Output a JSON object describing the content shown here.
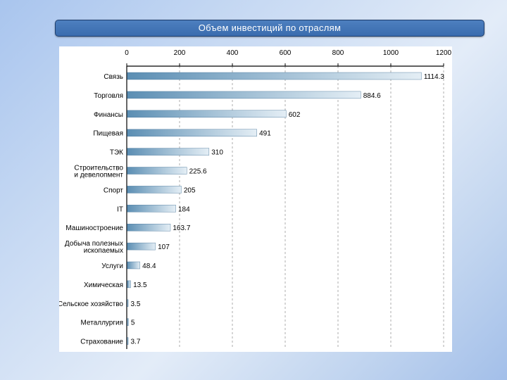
{
  "slide": {
    "title": "Объем инвестиций по отраслям"
  },
  "colors": {
    "bar_dark": "#5b8eb3",
    "bar_light": "#e4eef5",
    "axis": "#000000",
    "grid": "#9a9a9a",
    "title_bar": "#3f72b4"
  },
  "chart_data": {
    "type": "bar",
    "orientation": "horizontal",
    "title": "",
    "xlabel": "",
    "ylabel": "",
    "xlim": [
      0,
      1200
    ],
    "x_ticks": [
      "0",
      "200",
      "400",
      "600",
      "800",
      "1000",
      "1200"
    ],
    "x_axis_position": "top",
    "grid": "vertical dashed",
    "legend": "none",
    "categories": [
      "Связь",
      "Торговля",
      "Финансы",
      "Пищевая",
      "ТЭК",
      "Строительство и девелопмент",
      "Спорт",
      "IT",
      "Машиностроение",
      "Добыча полезных ископаемых",
      "Услуги",
      "Химическая",
      "Сельское хозяйство",
      "Металлургия",
      "Страхование"
    ],
    "category_label_lines": [
      [
        "Связь"
      ],
      [
        "Торговля"
      ],
      [
        "Финансы"
      ],
      [
        "Пищевая"
      ],
      [
        "ТЭК"
      ],
      [
        "Строительство",
        "и девелопмент"
      ],
      [
        "Спорт"
      ],
      [
        "IT"
      ],
      [
        "Машиностроение"
      ],
      [
        "Добыча полезных",
        "ископаемых"
      ],
      [
        "Услуги"
      ],
      [
        "Химическая"
      ],
      [
        "Сельское хозяйство"
      ],
      [
        "Металлургия"
      ],
      [
        "Страхование"
      ]
    ],
    "values": [
      1114.3,
      884.6,
      602,
      491,
      310,
      225.6,
      205,
      184,
      163.7,
      107,
      48.4,
      13.5,
      3.5,
      5,
      3.7
    ],
    "value_labels": [
      "1114.3",
      "884.6",
      "602",
      "491",
      "310",
      "225.6",
      "205",
      "184",
      "163.7",
      "107",
      "48.4",
      "13.5",
      "3.5",
      "5",
      "3.7"
    ]
  }
}
